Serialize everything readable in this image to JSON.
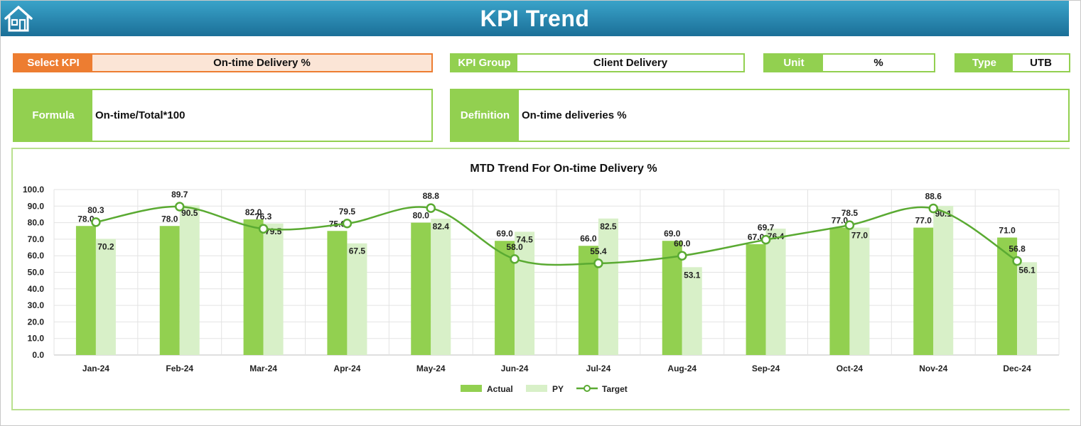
{
  "header": {
    "title": "KPI Trend",
    "home_icon": "home-icon"
  },
  "kpi": {
    "select_label": "Select KPI",
    "select_value": "On-time Delivery %",
    "group_label": "KPI Group",
    "group_value": "Client Delivery",
    "unit_label": "Unit",
    "unit_value": "%",
    "type_label": "Type",
    "type_value": "UTB",
    "formula_label": "Formula",
    "formula_value": "On-time/Total*100",
    "definition_label": "Definition",
    "definition_value": "On-time deliveries %"
  },
  "colors": {
    "accent": "#92d050",
    "select": "#ed7d31",
    "actual": "#92d050",
    "py": "#d8f0c8",
    "target": "#5aaa32",
    "header": "#1f7aa5"
  },
  "chart_data": {
    "type": "bar",
    "title": "MTD Trend For On-time Delivery %",
    "categories": [
      "Jan-24",
      "Feb-24",
      "Mar-24",
      "Apr-24",
      "May-24",
      "Jun-24",
      "Jul-24",
      "Aug-24",
      "Sep-24",
      "Oct-24",
      "Nov-24",
      "Dec-24"
    ],
    "series": [
      {
        "name": "Actual",
        "type": "bar",
        "values": [
          78.0,
          78.0,
          82.0,
          75.0,
          80.0,
          69.0,
          66.0,
          69.0,
          67.0,
          77.0,
          77.0,
          71.0
        ]
      },
      {
        "name": "PY",
        "type": "bar",
        "values": [
          70.2,
          90.5,
          79.5,
          67.5,
          82.4,
          74.5,
          82.5,
          53.1,
          76.4,
          77.0,
          90.1,
          56.1
        ]
      },
      {
        "name": "Target",
        "type": "line",
        "values": [
          80.3,
          89.7,
          76.3,
          79.5,
          88.8,
          58.0,
          55.4,
          60.0,
          69.7,
          78.5,
          88.6,
          56.8
        ]
      }
    ],
    "yticks": [
      "0.0",
      "10.0",
      "20.0",
      "30.0",
      "40.0",
      "50.0",
      "60.0",
      "70.0",
      "80.0",
      "90.0",
      "100.0"
    ],
    "ylim": [
      0,
      100
    ],
    "grid": true,
    "legend": "bottom"
  }
}
